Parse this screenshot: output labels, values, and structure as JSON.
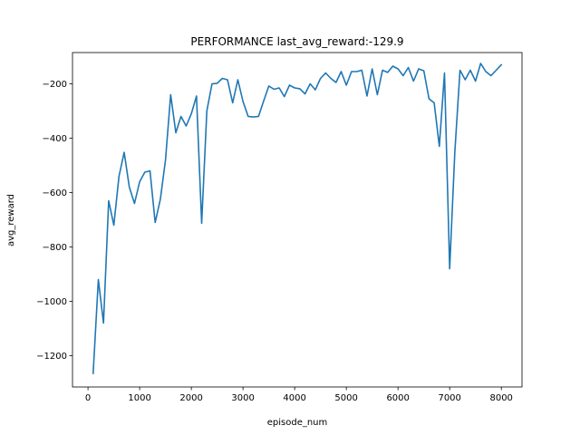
{
  "chart_data": {
    "type": "line",
    "title": "PERFORMANCE last_avg_reward:-129.9",
    "xlabel": "episode_num",
    "ylabel": "avg_reward",
    "xlim": [
      -300,
      8400
    ],
    "ylim": [
      -1315,
      -85
    ],
    "xticks": [
      0,
      1000,
      2000,
      3000,
      4000,
      5000,
      6000,
      7000,
      8000
    ],
    "xtick_labels": [
      "0",
      "1000",
      "2000",
      "3000",
      "4000",
      "5000",
      "6000",
      "7000",
      "8000"
    ],
    "yticks": [
      -1200,
      -1000,
      -800,
      -600,
      -400,
      -200
    ],
    "ytick_labels": [
      "−1200",
      "−1000",
      "−800",
      "−600",
      "−400",
      "−200"
    ],
    "grid": false,
    "series": [
      {
        "color": "#1f77b4",
        "x": [
          100,
          200,
          300,
          400,
          500,
          600,
          700,
          800,
          900,
          1000,
          1100,
          1200,
          1300,
          1400,
          1500,
          1600,
          1700,
          1800,
          1900,
          2000,
          2100,
          2200,
          2300,
          2400,
          2500,
          2600,
          2700,
          2800,
          2900,
          3000,
          3100,
          3200,
          3300,
          3400,
          3500,
          3600,
          3700,
          3800,
          3900,
          4000,
          4100,
          4200,
          4300,
          4400,
          4500,
          4600,
          4700,
          4800,
          4900,
          5000,
          5100,
          5200,
          5300,
          5400,
          5500,
          5600,
          5700,
          5800,
          5900,
          6000,
          6100,
          6200,
          6300,
          6400,
          6500,
          6600,
          6700,
          6800,
          6900,
          7000,
          7100,
          7200,
          7300,
          7400,
          7500,
          7600,
          7700,
          7800,
          7900,
          8000
        ],
        "y": [
          -1265,
          -920,
          -1080,
          -630,
          -720,
          -540,
          -452,
          -580,
          -640,
          -560,
          -525,
          -520,
          -710,
          -625,
          -480,
          -240,
          -380,
          -320,
          -355,
          -310,
          -245,
          -713,
          -300,
          -200,
          -198,
          -180,
          -185,
          -270,
          -185,
          -265,
          -320,
          -322,
          -320,
          -263,
          -208,
          -220,
          -215,
          -247,
          -205,
          -215,
          -218,
          -237,
          -200,
          -222,
          -180,
          -160,
          -180,
          -195,
          -155,
          -205,
          -155,
          -155,
          -150,
          -245,
          -145,
          -240,
          -150,
          -158,
          -135,
          -145,
          -170,
          -140,
          -190,
          -145,
          -152,
          -255,
          -270,
          -430,
          -160,
          -880,
          -450,
          -150,
          -185,
          -150,
          -190,
          -125,
          -155,
          -170,
          -150,
          -129.9
        ]
      }
    ]
  }
}
